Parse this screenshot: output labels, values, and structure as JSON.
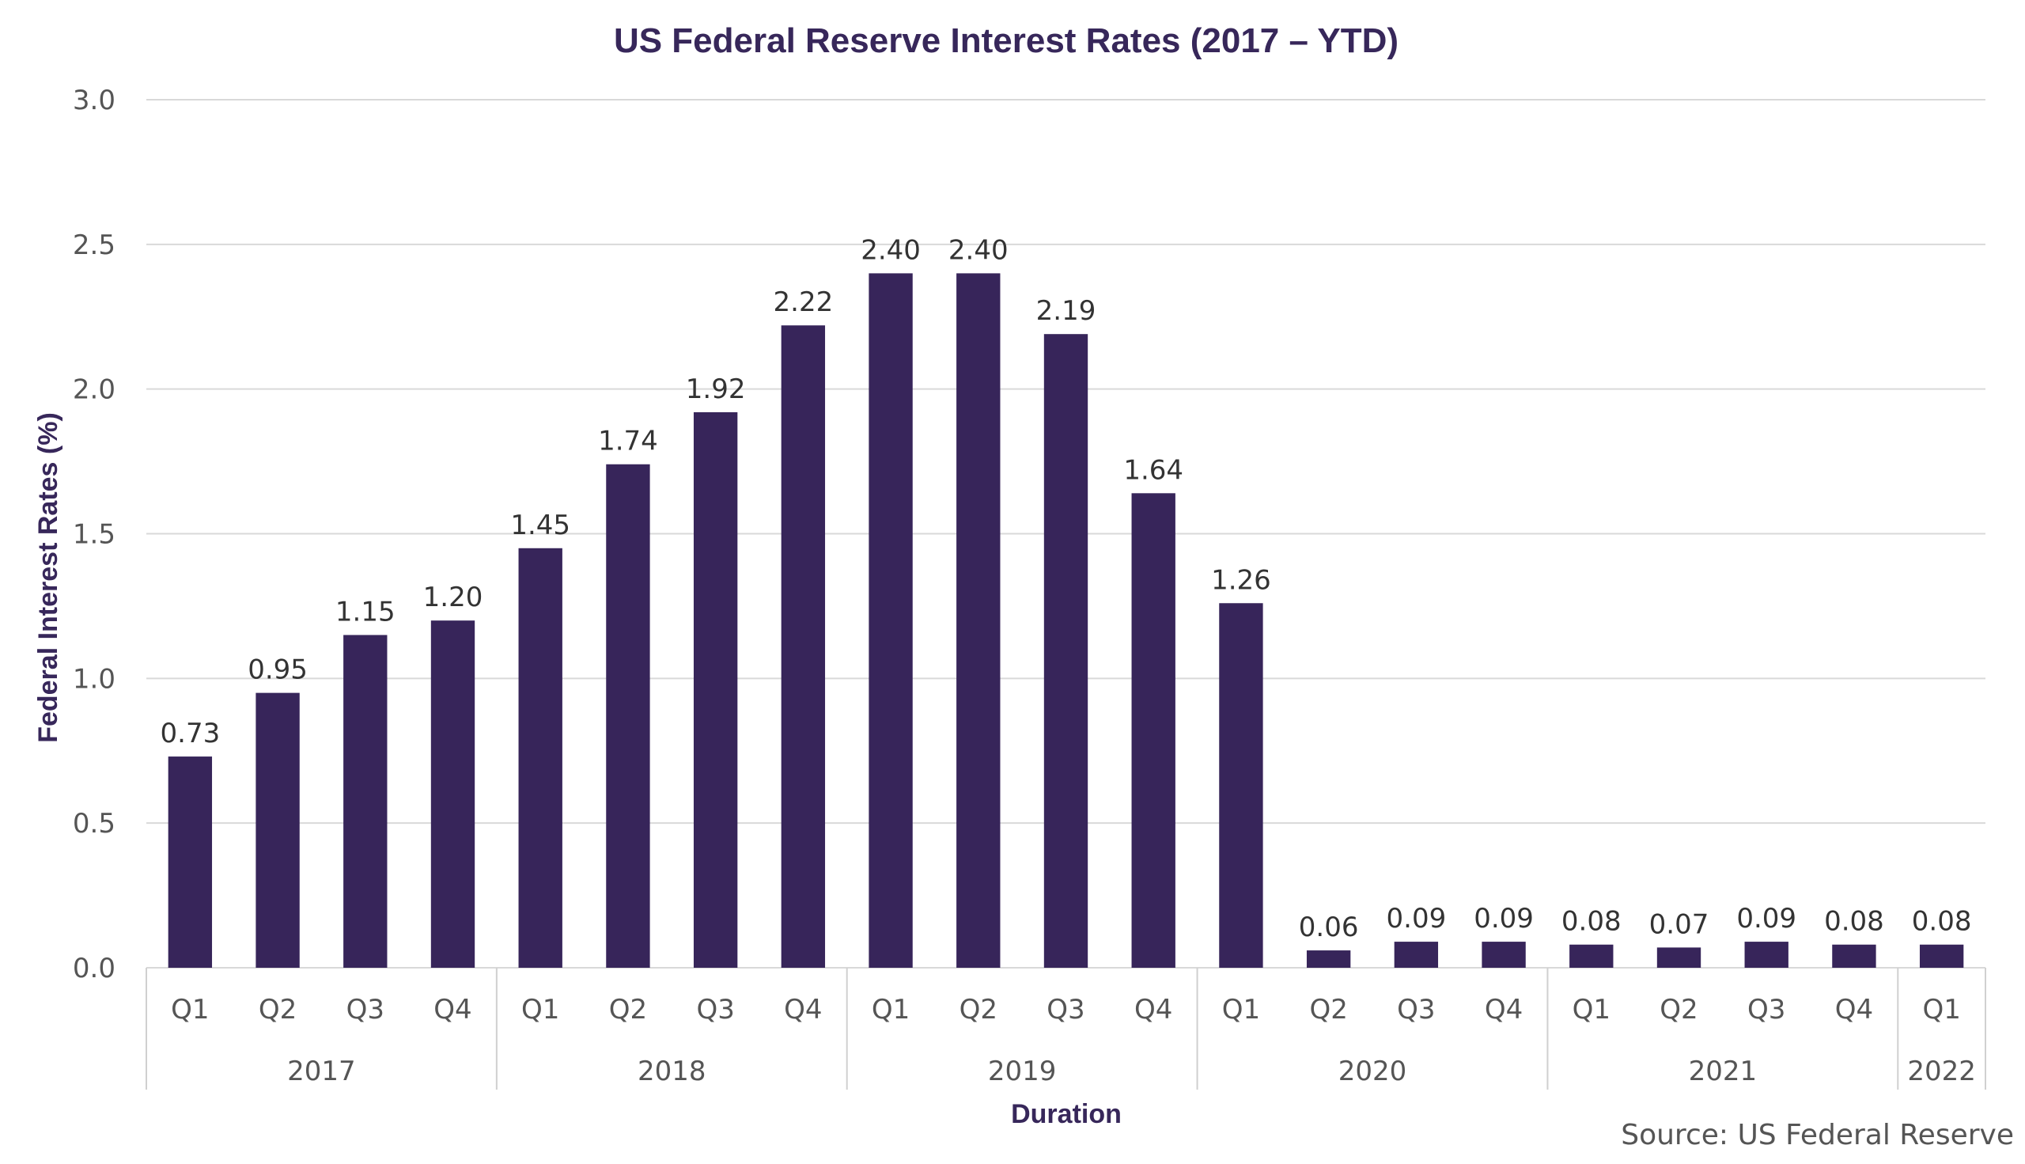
{
  "chart_data": {
    "type": "bar",
    "title": "US Federal Reserve Interest Rates (2017 – YTD)",
    "xlabel": "Duration",
    "ylabel": "Federal Interest Rates (%)",
    "ylim": [
      0,
      3.0
    ],
    "yticks": [
      "0.0",
      "0.5",
      "1.0",
      "1.5",
      "2.0",
      "2.5",
      "3.0"
    ],
    "grid": true,
    "bar_color": "#37255a",
    "title_color": "#37275a",
    "groups": [
      {
        "label": "2017",
        "categories": [
          "Q1",
          "Q2",
          "Q3",
          "Q4"
        ],
        "values": [
          0.73,
          0.95,
          1.15,
          1.2
        ],
        "value_labels": [
          "0.73",
          "0.95",
          "1.15",
          "1.20"
        ]
      },
      {
        "label": "2018",
        "categories": [
          "Q1",
          "Q2",
          "Q3",
          "Q4"
        ],
        "values": [
          1.45,
          1.74,
          1.92,
          2.22
        ],
        "value_labels": [
          "1.45",
          "1.74",
          "1.92",
          "2.22"
        ]
      },
      {
        "label": "2019",
        "categories": [
          "Q1",
          "Q2",
          "Q3",
          "Q4"
        ],
        "values": [
          2.4,
          2.4,
          2.19,
          1.64
        ],
        "value_labels": [
          "2.40",
          "2.40",
          "2.19",
          "1.64"
        ]
      },
      {
        "label": "2020",
        "categories": [
          "Q1",
          "Q2",
          "Q3",
          "Q4"
        ],
        "values": [
          1.26,
          0.06,
          0.09,
          0.09
        ],
        "value_labels": [
          "1.26",
          "0.06",
          "0.09",
          "0.09"
        ]
      },
      {
        "label": "2021",
        "categories": [
          "Q1",
          "Q2",
          "Q3",
          "Q4"
        ],
        "values": [
          0.08,
          0.07,
          0.09,
          0.08
        ],
        "value_labels": [
          "0.08",
          "0.07",
          "0.09",
          "0.08"
        ]
      },
      {
        "label": "2022",
        "categories": [
          "Q1"
        ],
        "values": [
          0.08
        ],
        "value_labels": [
          "0.08"
        ]
      }
    ],
    "source": "Source: US Federal Reserve"
  }
}
